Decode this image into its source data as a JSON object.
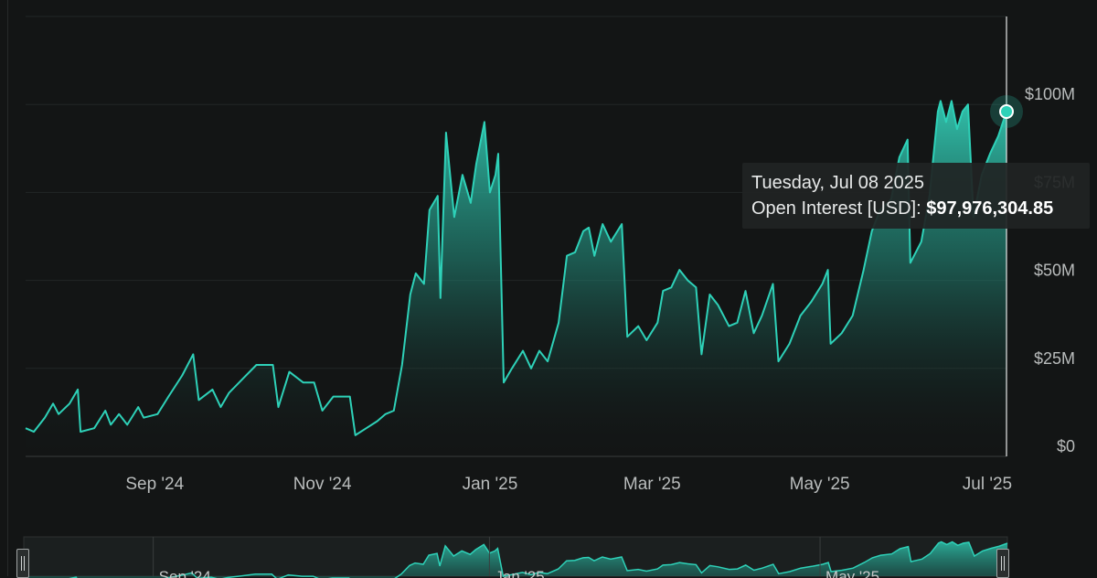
{
  "chart_data": {
    "type": "area",
    "title": "",
    "xlabel": "",
    "ylabel": "",
    "x_tick_labels": [
      "Sep '24",
      "Nov '24",
      "Jan '25",
      "Mar '25",
      "May '25",
      "Jul '25"
    ],
    "y_tick_labels": [
      "$0",
      "$25M",
      "$50M",
      "$75M",
      "$100M"
    ],
    "ylim": [
      0,
      125000000
    ],
    "xlim": [
      "2024-07-16",
      "2025-07-08"
    ],
    "grid": true,
    "series": [
      {
        "name": "Open Interest [USD]",
        "color": "#2ed1b8",
        "points": [
          [
            "2024-07-16",
            8000000
          ],
          [
            "2024-07-19",
            7000000
          ],
          [
            "2024-07-23",
            11000000
          ],
          [
            "2024-07-26",
            15000000
          ],
          [
            "2024-07-28",
            12000000
          ],
          [
            "2024-08-01",
            15000000
          ],
          [
            "2024-08-04",
            19000000
          ],
          [
            "2024-08-05",
            7000000
          ],
          [
            "2024-08-10",
            8000000
          ],
          [
            "2024-08-14",
            13000000
          ],
          [
            "2024-08-16",
            9000000
          ],
          [
            "2024-08-19",
            12000000
          ],
          [
            "2024-08-22",
            9000000
          ],
          [
            "2024-08-26",
            14000000
          ],
          [
            "2024-08-28",
            11000000
          ],
          [
            "2024-09-02",
            12000000
          ],
          [
            "2024-09-06",
            17000000
          ],
          [
            "2024-09-11",
            23000000
          ],
          [
            "2024-09-15",
            29000000
          ],
          [
            "2024-09-17",
            16000000
          ],
          [
            "2024-09-22",
            19000000
          ],
          [
            "2024-09-25",
            14000000
          ],
          [
            "2024-09-28",
            18000000
          ],
          [
            "2024-10-03",
            22000000
          ],
          [
            "2024-10-08",
            26000000
          ],
          [
            "2024-10-14",
            26000000
          ],
          [
            "2024-10-16",
            14000000
          ],
          [
            "2024-10-20",
            24000000
          ],
          [
            "2024-10-25",
            21000000
          ],
          [
            "2024-10-29",
            21000000
          ],
          [
            "2024-11-01",
            13000000
          ],
          [
            "2024-11-05",
            17000000
          ],
          [
            "2024-11-11",
            17000000
          ],
          [
            "2024-11-13",
            6000000
          ],
          [
            "2024-11-17",
            8000000
          ],
          [
            "2024-11-21",
            10000000
          ],
          [
            "2024-11-24",
            12000000
          ],
          [
            "2024-11-27",
            13000000
          ],
          [
            "2024-11-30",
            26000000
          ],
          [
            "2024-12-03",
            46000000
          ],
          [
            "2024-12-05",
            52000000
          ],
          [
            "2024-12-08",
            49000000
          ],
          [
            "2024-12-10",
            70000000
          ],
          [
            "2024-12-13",
            74000000
          ],
          [
            "2024-12-14",
            45000000
          ],
          [
            "2024-12-16",
            92000000
          ],
          [
            "2024-12-19",
            68000000
          ],
          [
            "2024-12-22",
            80000000
          ],
          [
            "2024-12-25",
            72000000
          ],
          [
            "2024-12-27",
            83000000
          ],
          [
            "2024-12-30",
            95000000
          ],
          [
            "2025-01-01",
            75000000
          ],
          [
            "2025-01-03",
            80000000
          ],
          [
            "2025-01-04",
            86000000
          ],
          [
            "2025-01-06",
            21000000
          ],
          [
            "2025-01-09",
            25000000
          ],
          [
            "2025-01-13",
            30000000
          ],
          [
            "2025-01-16",
            25000000
          ],
          [
            "2025-01-19",
            30000000
          ],
          [
            "2025-01-22",
            27000000
          ],
          [
            "2025-01-26",
            38000000
          ],
          [
            "2025-01-29",
            57000000
          ],
          [
            "2025-02-01",
            58000000
          ],
          [
            "2025-02-04",
            64000000
          ],
          [
            "2025-02-06",
            65000000
          ],
          [
            "2025-02-08",
            57000000
          ],
          [
            "2025-02-11",
            66000000
          ],
          [
            "2025-02-14",
            61000000
          ],
          [
            "2025-02-18",
            66000000
          ],
          [
            "2025-02-20",
            34000000
          ],
          [
            "2025-02-24",
            37000000
          ],
          [
            "2025-02-27",
            33000000
          ],
          [
            "2025-03-03",
            38000000
          ],
          [
            "2025-03-05",
            47000000
          ],
          [
            "2025-03-08",
            48000000
          ],
          [
            "2025-03-11",
            53000000
          ],
          [
            "2025-03-14",
            50000000
          ],
          [
            "2025-03-17",
            48000000
          ],
          [
            "2025-03-19",
            29000000
          ],
          [
            "2025-03-22",
            46000000
          ],
          [
            "2025-03-25",
            43000000
          ],
          [
            "2025-03-29",
            37000000
          ],
          [
            "2025-04-01",
            38000000
          ],
          [
            "2025-04-04",
            47000000
          ],
          [
            "2025-04-07",
            35000000
          ],
          [
            "2025-04-10",
            40000000
          ],
          [
            "2025-04-14",
            49000000
          ],
          [
            "2025-04-16",
            27000000
          ],
          [
            "2025-04-20",
            32000000
          ],
          [
            "2025-04-24",
            40000000
          ],
          [
            "2025-04-28",
            44000000
          ],
          [
            "2025-05-02",
            49000000
          ],
          [
            "2025-05-04",
            53000000
          ],
          [
            "2025-05-05",
            32000000
          ],
          [
            "2025-05-09",
            35000000
          ],
          [
            "2025-05-13",
            40000000
          ],
          [
            "2025-05-17",
            53000000
          ],
          [
            "2025-05-20",
            64000000
          ],
          [
            "2025-05-23",
            70000000
          ],
          [
            "2025-05-27",
            73000000
          ],
          [
            "2025-05-30",
            85000000
          ],
          [
            "2025-06-02",
            90000000
          ],
          [
            "2025-06-03",
            55000000
          ],
          [
            "2025-06-07",
            61000000
          ],
          [
            "2025-06-10",
            74000000
          ],
          [
            "2025-06-13",
            98000000
          ],
          [
            "2025-06-14",
            101000000
          ],
          [
            "2025-06-16",
            95000000
          ],
          [
            "2025-06-18",
            101000000
          ],
          [
            "2025-06-20",
            93000000
          ],
          [
            "2025-06-22",
            98000000
          ],
          [
            "2025-06-24",
            100000000
          ],
          [
            "2025-06-26",
            68000000
          ],
          [
            "2025-06-29",
            80000000
          ],
          [
            "2025-07-02",
            86000000
          ],
          [
            "2025-07-05",
            91000000
          ],
          [
            "2025-07-08",
            97976304.85
          ]
        ]
      }
    ]
  },
  "tooltip": {
    "date": "Tuesday, Jul 08 2025",
    "label": "Open Interest [USD]:",
    "value": "$97,976,304.85"
  },
  "navigator": {
    "tick_labels": [
      "Sep '24",
      "Jan '25",
      "May '25"
    ]
  },
  "colors": {
    "line": "#2ed1b8",
    "fill_top": "#33c9b3",
    "background": "#131515"
  }
}
